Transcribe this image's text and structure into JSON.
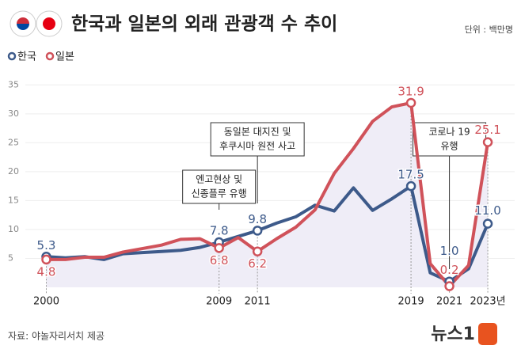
{
  "chart_data": {
    "type": "line",
    "title": "한국과 일본의 외래 관광객 수 추이",
    "unit": "단위 : 백만명",
    "source": "자료: 야놀자리서치 제공",
    "logo": "뉴스1",
    "x": [
      2000,
      2001,
      2002,
      2003,
      2004,
      2005,
      2006,
      2007,
      2008,
      2009,
      2010,
      2011,
      2012,
      2013,
      2014,
      2015,
      2016,
      2017,
      2018,
      2019,
      2020,
      2021,
      2022,
      2023
    ],
    "series": [
      {
        "name": "한국",
        "color": "#3d5a8a",
        "values": [
          5.3,
          5.1,
          5.3,
          4.8,
          5.8,
          6.0,
          6.2,
          6.4,
          6.9,
          7.8,
          8.8,
          9.8,
          11.1,
          12.2,
          14.2,
          13.2,
          17.2,
          13.3,
          15.3,
          17.5,
          2.5,
          1.0,
          3.2,
          11.0
        ],
        "value_labels": [
          "5.3",
          null,
          null,
          null,
          null,
          null,
          null,
          null,
          null,
          "7.8",
          null,
          "9.8",
          null,
          null,
          null,
          null,
          null,
          null,
          null,
          "17.5",
          null,
          "1.0",
          null,
          "11.0"
        ]
      },
      {
        "name": "일본",
        "color": "#d0525a",
        "values": [
          4.8,
          4.8,
          5.2,
          5.2,
          6.1,
          6.7,
          7.3,
          8.3,
          8.4,
          6.8,
          8.6,
          6.2,
          8.4,
          10.4,
          13.4,
          19.7,
          24.0,
          28.7,
          31.2,
          31.9,
          4.1,
          0.2,
          3.8,
          25.1
        ],
        "value_labels": [
          "4.8",
          null,
          null,
          null,
          null,
          null,
          null,
          null,
          null,
          "6.8",
          null,
          "6.2",
          null,
          null,
          null,
          null,
          null,
          null,
          null,
          "31.9",
          null,
          "0.2",
          null,
          "25.1"
        ]
      }
    ],
    "xlim": [
      1998,
      2024.4
    ],
    "xticks": [
      2000,
      2009,
      2011,
      2019,
      2021,
      {
        "value": 2023,
        "label": "2023년"
      }
    ],
    "ylim": [
      0,
      36
    ],
    "yticks": [
      5,
      10,
      15,
      20,
      25,
      30,
      35
    ],
    "annotations": [
      {
        "x": 2009,
        "lines": [
          "엔고현상 및",
          "신종플루 유행"
        ]
      },
      {
        "x": 2011,
        "lines": [
          "동일본 대지진 및",
          "후쿠시마 원전 사고"
        ]
      },
      {
        "x": 2021,
        "lines": [
          "코로나 19",
          "유행"
        ]
      }
    ]
  }
}
